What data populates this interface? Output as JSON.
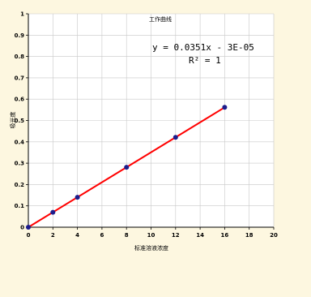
{
  "chart_data": {
    "type": "scatter",
    "title": "工作曲线",
    "xlabel": "标准溶液浓度",
    "ylabel": "吸光度",
    "xlim": [
      0,
      20
    ],
    "ylim": [
      0,
      1
    ],
    "x_ticks": [
      0,
      2,
      4,
      6,
      8,
      10,
      12,
      14,
      16,
      18,
      20
    ],
    "y_ticks": [
      0,
      0.1,
      0.2,
      0.3,
      0.4,
      0.5,
      0.6,
      0.7,
      0.8,
      0.9,
      1
    ],
    "grid": true,
    "series": [
      {
        "x": [
          0,
          2,
          4,
          8,
          12,
          16
        ],
        "y": [
          0,
          0.07,
          0.14,
          0.281,
          0.421,
          0.562
        ],
        "marker_color": "#1c1c8c"
      }
    ],
    "trendline": {
      "slope": 0.0351,
      "intercept": -3e-05,
      "x_range": [
        0,
        16
      ],
      "color": "#ff0000",
      "equation": "y = 0.0351x - 3E-05",
      "r_squared": "R² = 1"
    },
    "background_color": "#fdf7e0"
  }
}
